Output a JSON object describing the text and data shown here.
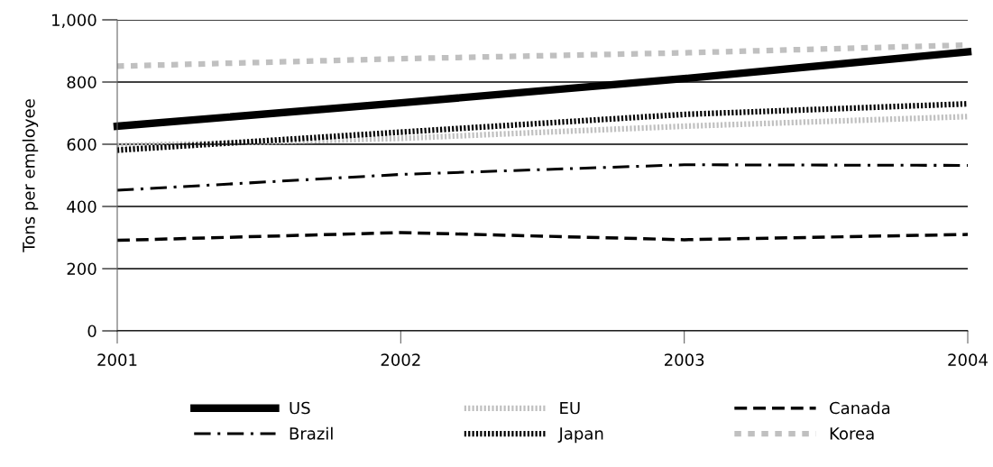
{
  "chart_data": {
    "type": "line",
    "ylabel": "Tons per employee",
    "x": [
      2001,
      2002,
      2003,
      2004
    ],
    "xlim": [
      2001,
      2004
    ],
    "xticks": [
      2001,
      2002,
      2003,
      2004
    ],
    "ylim": [
      0,
      1000
    ],
    "yticks": [
      0,
      200,
      400,
      600,
      800,
      {
        "value": 1000,
        "label": "1,000"
      }
    ],
    "grid": "y",
    "legend": "bottom",
    "series": [
      {
        "name": "US",
        "color": "#000000",
        "line_style": "solid",
        "values": [
          658,
          733,
          811,
          897
        ]
      },
      {
        "name": "EU",
        "color": "#c0c0c0",
        "line_style": "dotted",
        "values": [
          595,
          619,
          658,
          689
        ]
      },
      {
        "name": "Canada",
        "color": "#000000",
        "line_style": "dashed",
        "values": [
          291,
          316,
          293,
          310
        ]
      },
      {
        "name": "Brazil",
        "color": "#000000",
        "line_style": "dashdot",
        "values": [
          452,
          503,
          534,
          532
        ]
      },
      {
        "name": "Japan",
        "color": "#000000",
        "line_style": "dotted",
        "values": [
          581,
          639,
          696,
          730
        ]
      },
      {
        "name": "Korea",
        "color": "#c0c0c0",
        "line_style": "dashed",
        "values": [
          851,
          875,
          894,
          919
        ]
      }
    ]
  }
}
